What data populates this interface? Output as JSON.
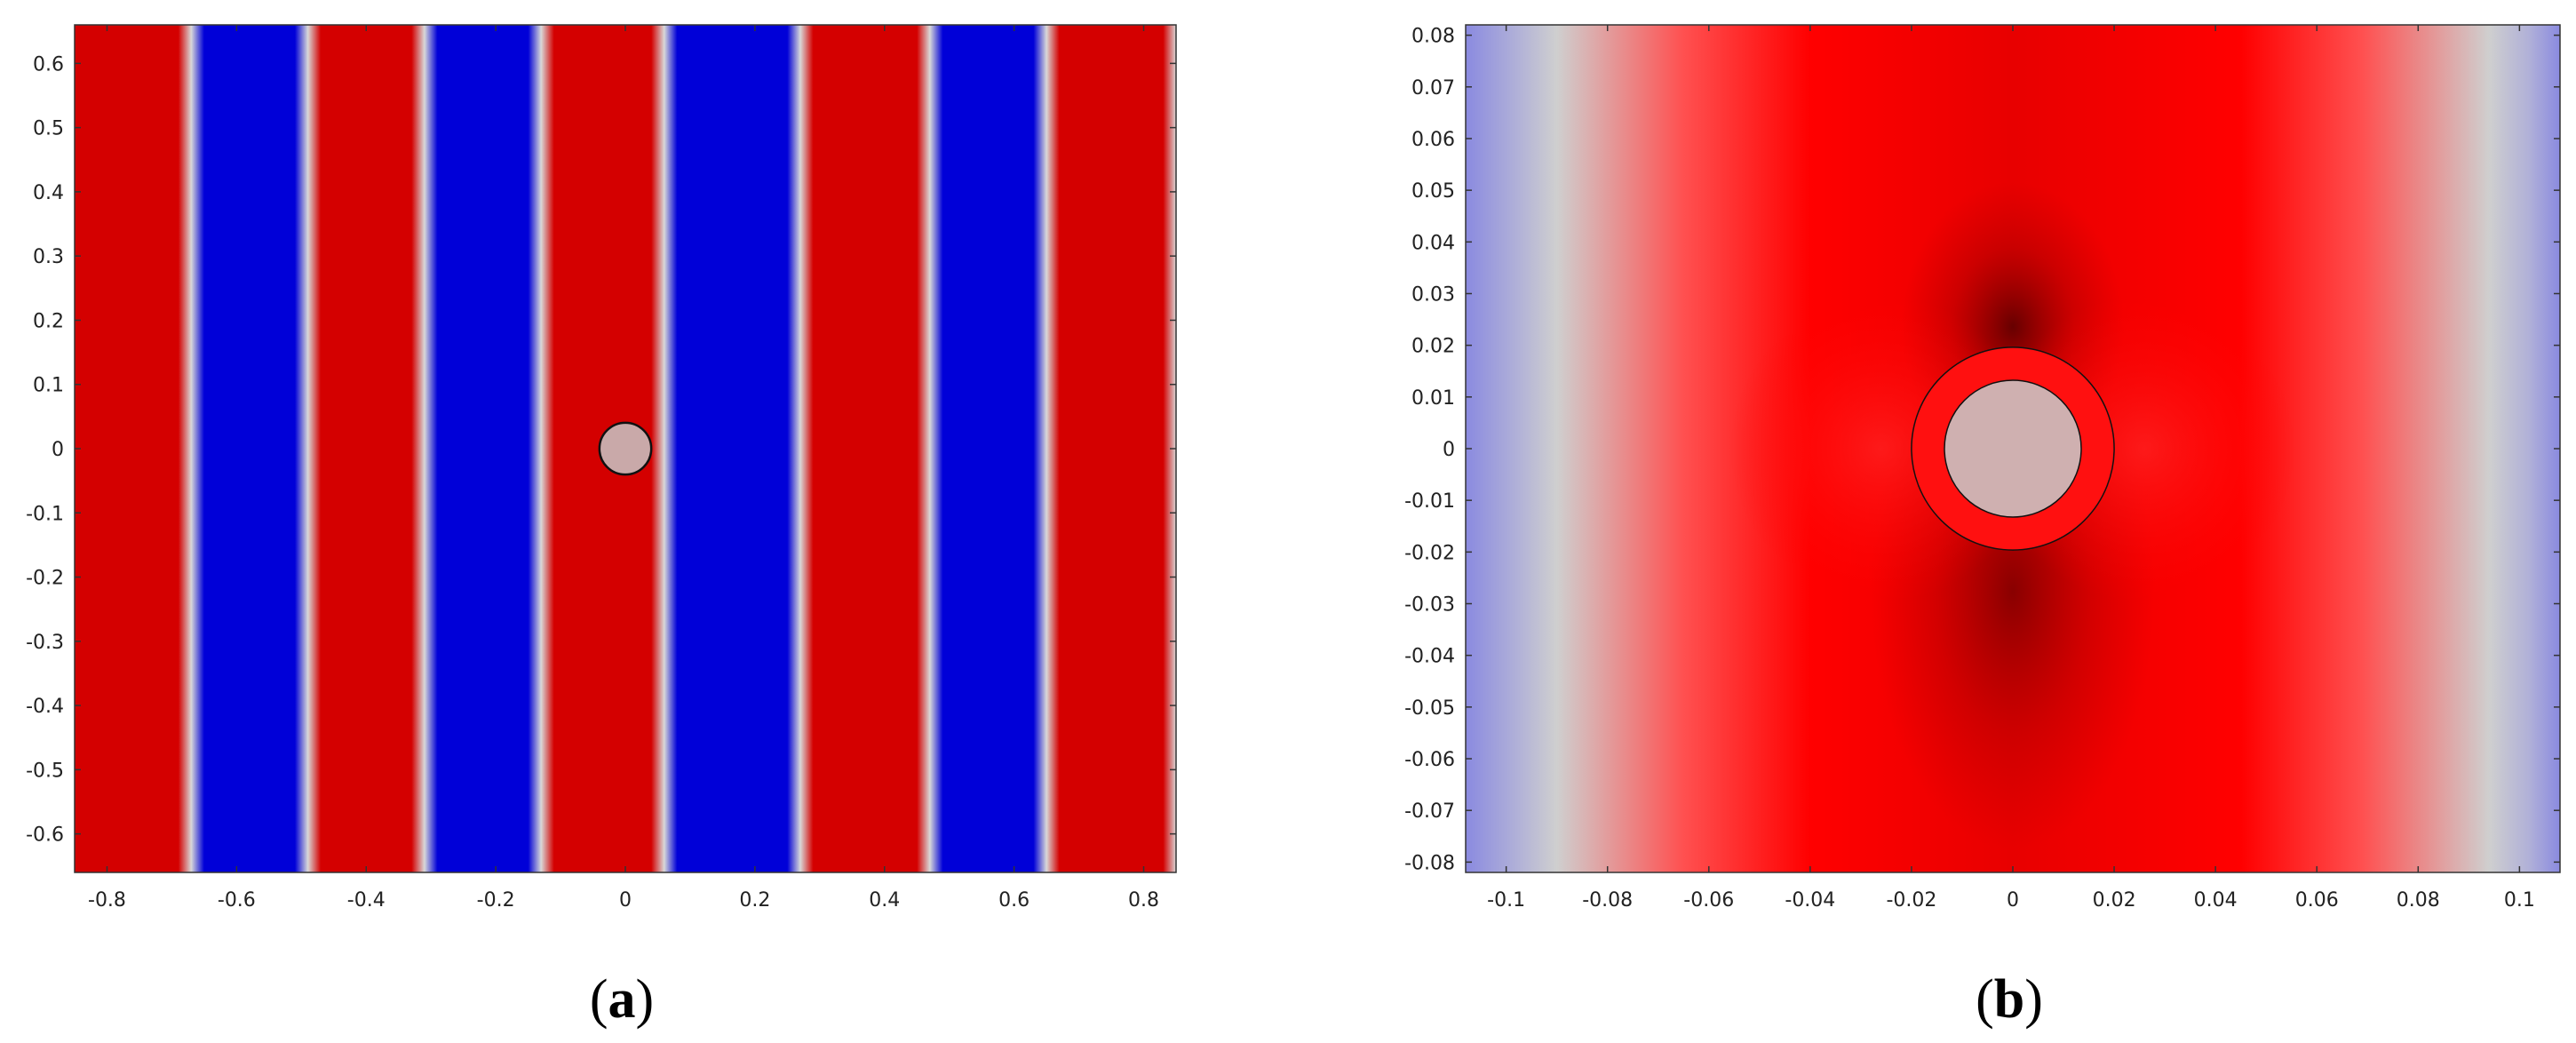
{
  "figure": {
    "panels": [
      {
        "label_open": "(",
        "label_letter": "a",
        "label_close": ")"
      },
      {
        "label_open": "(",
        "label_letter": "b",
        "label_close": ")"
      }
    ]
  },
  "chart_data": [
    {
      "type": "heatmap",
      "title": "",
      "xlabel": "",
      "ylabel": "",
      "xlim": [
        -0.85,
        0.85
      ],
      "ylim": [
        -0.66,
        0.66
      ],
      "x_ticks": [
        -0.8,
        -0.6,
        -0.4,
        -0.2,
        0,
        0.2,
        0.4,
        0.6,
        0.8
      ],
      "y_ticks": [
        -0.6,
        -0.5,
        -0.4,
        -0.3,
        -0.2,
        -0.1,
        0,
        0.1,
        0.2,
        0.3,
        0.4,
        0.5,
        0.6
      ],
      "x_tick_labels": [
        "-0.8",
        "-0.6",
        "-0.4",
        "-0.2",
        "0",
        "0.2",
        "0.4",
        "0.6",
        "0.8"
      ],
      "y_tick_labels": [
        "-0.6",
        "-0.5",
        "-0.4",
        "-0.3",
        "-0.2",
        "-0.1",
        "0",
        "0.1",
        "0.2",
        "0.3",
        "0.4",
        "0.5",
        "0.6"
      ],
      "field": "plane wave with vertical wavefronts, alternating red (positive) and blue (negative)",
      "red_band_centers_x": [
        -0.76,
        -0.4,
        -0.04,
        0.38,
        0.74
      ],
      "blue_band_centers_x": [
        -0.58,
        -0.22,
        0.16,
        0.56
      ],
      "band_half_width": 0.09,
      "scatterer": {
        "cx": 0,
        "cy": 0,
        "r": 0.04,
        "fill": "#c9a9a9"
      },
      "colors": {
        "positive": "#d40000",
        "negative": "#0000d8",
        "zero": "#d8d8d8",
        "scatterer": "#c9a9a9"
      }
    },
    {
      "type": "heatmap",
      "title": "",
      "xlabel": "",
      "ylabel": "",
      "xlim": [
        -0.108,
        0.108
      ],
      "ylim": [
        -0.082,
        0.082
      ],
      "x_ticks": [
        -0.1,
        -0.08,
        -0.06,
        -0.04,
        -0.02,
        0,
        0.02,
        0.04,
        0.06,
        0.08,
        0.1
      ],
      "y_ticks": [
        -0.08,
        -0.07,
        -0.06,
        -0.05,
        -0.04,
        -0.03,
        -0.02,
        -0.01,
        0,
        0.01,
        0.02,
        0.03,
        0.04,
        0.05,
        0.06,
        0.07,
        0.08
      ],
      "x_tick_labels": [
        "-0.1",
        "-0.08",
        "-0.06",
        "-0.04",
        "-0.02",
        "0",
        "0.02",
        "0.04",
        "0.06",
        "0.08",
        "0.1"
      ],
      "y_tick_labels": [
        "-0.08",
        "-0.07",
        "-0.06",
        "-0.05",
        "-0.04",
        "-0.03",
        "-0.02",
        "-0.01",
        "0",
        "0.01",
        "0.02",
        "0.03",
        "0.04",
        "0.05",
        "0.06",
        "0.07",
        "0.08"
      ],
      "field": "zoom near scatterer: central red region, fading to grey and blue at left and right edges",
      "zero_crossing_x": [
        -0.09,
        0.094
      ],
      "scatterer": {
        "cx": 0,
        "cy": 0,
        "r_inner": 0.0135,
        "r_outer": 0.02,
        "fill": "#cfb0b0"
      },
      "colors": {
        "positive": "#ff0000",
        "dark_positive": "#8a0000",
        "zero": "#cfcfcf",
        "negative": "#8a8ae0",
        "scatterer": "#cfb0b0"
      }
    }
  ]
}
